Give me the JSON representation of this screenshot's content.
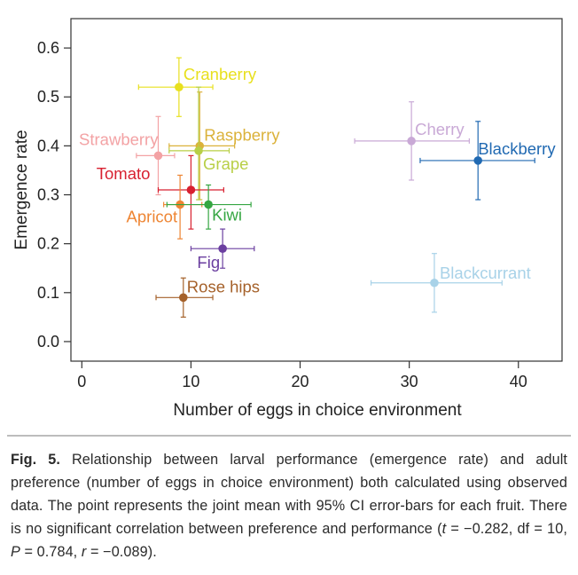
{
  "chart_data": {
    "type": "scatter",
    "xlabel": "Number of eggs in choice environment",
    "ylabel": "Emergence rate",
    "xlim": [
      -1,
      44
    ],
    "ylim": [
      -0.04,
      0.66
    ],
    "xticks": [
      "0",
      "10",
      "20",
      "30",
      "40"
    ],
    "yticks": [
      "0.0",
      "0.1",
      "0.2",
      "0.3",
      "0.4",
      "0.5",
      "0.6"
    ],
    "grid": false,
    "legend": "none",
    "error_bars": "95% CI",
    "points": [
      {
        "name": "Cranberry",
        "x": 8.9,
        "y": 0.52,
        "xci": [
          5.2,
          12.0
        ],
        "yci": [
          0.46,
          0.58
        ],
        "color": "#e8e01e"
      },
      {
        "name": "Raspberry",
        "x": 10.8,
        "y": 0.4,
        "xci": [
          8.0,
          14.0
        ],
        "yci": [
          0.29,
          0.51
        ],
        "color": "#dbb23a"
      },
      {
        "name": "Grape",
        "x": 10.7,
        "y": 0.39,
        "xci": [
          8.0,
          13.5
        ],
        "yci": [
          0.29,
          0.52
        ],
        "color": "#b8cf46"
      },
      {
        "name": "Strawberry",
        "x": 7.0,
        "y": 0.38,
        "xci": [
          5.0,
          8.5
        ],
        "yci": [
          0.3,
          0.46
        ],
        "color": "#f3a2a4"
      },
      {
        "name": "Tomato",
        "x": 10.0,
        "y": 0.31,
        "xci": [
          7.0,
          13.0
        ],
        "yci": [
          0.23,
          0.38
        ],
        "color": "#d82030"
      },
      {
        "name": "Apricot",
        "x": 9.0,
        "y": 0.28,
        "xci": [
          7.5,
          11.0
        ],
        "yci": [
          0.21,
          0.34
        ],
        "color": "#ee8533"
      },
      {
        "name": "Kiwi",
        "x": 11.6,
        "y": 0.28,
        "xci": [
          7.8,
          15.5
        ],
        "yci": [
          0.23,
          0.32
        ],
        "color": "#35a642"
      },
      {
        "name": "Fig",
        "x": 12.9,
        "y": 0.19,
        "xci": [
          10.0,
          15.8
        ],
        "yci": [
          0.15,
          0.23
        ],
        "color": "#6b3fa0"
      },
      {
        "name": "Rose hips",
        "x": 9.3,
        "y": 0.09,
        "xci": [
          6.8,
          12.0
        ],
        "yci": [
          0.05,
          0.13
        ],
        "color": "#a5612a"
      },
      {
        "name": "Cherry",
        "x": 30.2,
        "y": 0.41,
        "xci": [
          25.0,
          35.5
        ],
        "yci": [
          0.33,
          0.49
        ],
        "color": "#c9a9d6"
      },
      {
        "name": "Blackberry",
        "x": 36.3,
        "y": 0.37,
        "xci": [
          31.0,
          41.5
        ],
        "yci": [
          0.29,
          0.45
        ],
        "color": "#2069b2"
      },
      {
        "name": "Blackcurrant",
        "x": 32.3,
        "y": 0.12,
        "xci": [
          26.5,
          38.5
        ],
        "yci": [
          0.06,
          0.18
        ],
        "color": "#a8d2e8"
      }
    ]
  },
  "caption": {
    "label": "Fig. 5.",
    "text_before_stats": "Relationship between larval performance (emergence rate) and adult preference (number of eggs in choice environment) both calculated using observed data. The point represents the joint mean with 95% CI error-bars for each fruit. There is no significant correlation between preference and performance (",
    "t_symbol": "t",
    "t_value": "= −0.282, df = 10,",
    "p_symbol": "P",
    "p_value": "= 0.784,",
    "r_symbol": "r",
    "r_value": "= −0.089)."
  }
}
